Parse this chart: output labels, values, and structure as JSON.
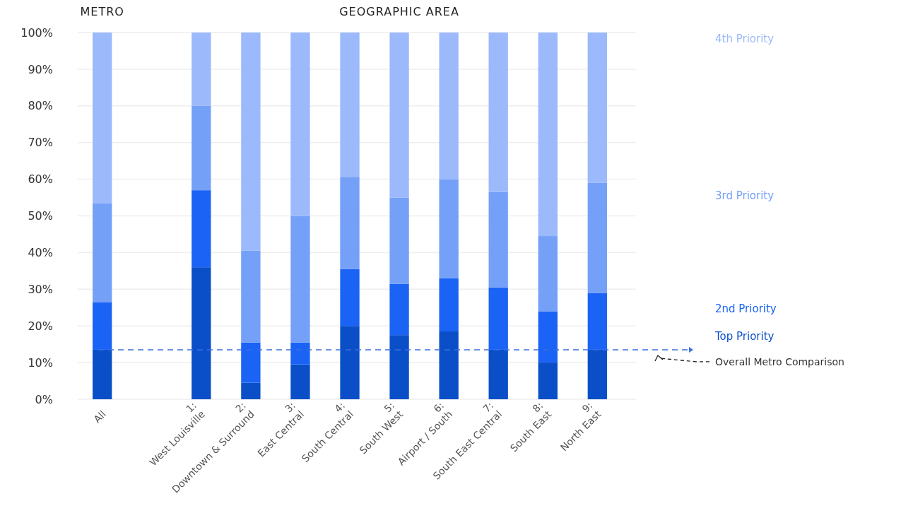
{
  "chart_data": {
    "type": "bar",
    "stacked": true,
    "categories": [
      "All",
      null,
      "1:\nWest Louisville",
      "2:\nDowntown & Surround",
      "3:\nEast Central",
      "4:\nSouth Central",
      "5:\nSouth West",
      "6:\nAirport / South",
      "7:\nSouth East Central",
      "8:\nSouth East",
      "9:\nNorth East"
    ],
    "series": [
      {
        "name": "Top Priority",
        "color": "#0a4fc8",
        "values": [
          13.5,
          null,
          36,
          4.5,
          9.5,
          20,
          17.5,
          18.5,
          13.5,
          10,
          13.5
        ]
      },
      {
        "name": "2nd Priority",
        "color": "#1a63f5",
        "values": [
          13,
          null,
          21,
          11,
          6,
          15.5,
          14,
          14.5,
          17,
          14,
          15.5
        ]
      },
      {
        "name": "3rd Priority",
        "color": "#74a0f8",
        "values": [
          27,
          null,
          23,
          25,
          34.5,
          25,
          23.5,
          27,
          26,
          20.5,
          30
        ]
      },
      {
        "name": "4th Priority",
        "color": "#9bb9fb",
        "values": [
          46.5,
          null,
          20,
          59.5,
          50,
          39.5,
          45,
          40,
          43.5,
          55.5,
          41
        ]
      }
    ],
    "ylim": [
      0,
      100
    ],
    "yticks": [
      {
        "value": 0,
        "label": "0%"
      },
      {
        "value": 10,
        "label": "10%"
      },
      {
        "value": 20,
        "label": "20%"
      },
      {
        "value": 30,
        "label": "30%"
      },
      {
        "value": 40,
        "label": "40%"
      },
      {
        "value": 50,
        "label": "50%"
      },
      {
        "value": 60,
        "label": "60%"
      },
      {
        "value": 70,
        "label": "70%"
      },
      {
        "value": 80,
        "label": "80%"
      },
      {
        "value": 90,
        "label": "90%"
      },
      {
        "value": 100,
        "label": "100%"
      }
    ],
    "grid": "y",
    "legend": "right",
    "ref_lines": [
      {
        "axis": "y",
        "value": 13.5,
        "label": "Overall Metro Comparison",
        "color": "#3b6fe0",
        "line_style": "dashed"
      }
    ],
    "annotations": [
      "METRO",
      "GEOGRAPHIC AREA"
    ]
  }
}
